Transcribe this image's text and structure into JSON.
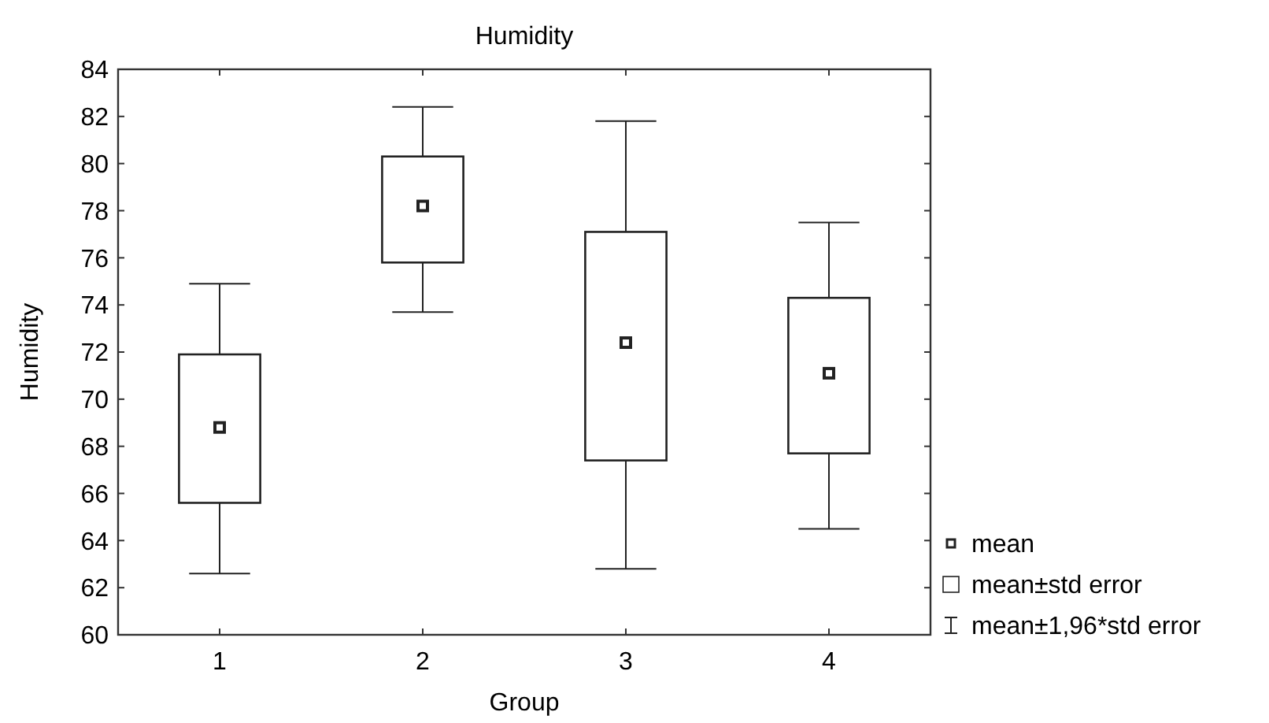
{
  "chart_data": {
    "type": "box",
    "title": "Humidity",
    "xlabel": "Group",
    "ylabel": "Humidity",
    "categories": [
      "1",
      "2",
      "3",
      "4"
    ],
    "boxes": [
      {
        "low": 62.6,
        "q1": 65.6,
        "median": 68.8,
        "q3": 71.9,
        "high": 74.9
      },
      {
        "low": 73.7,
        "q1": 75.8,
        "median": 78.2,
        "q3": 80.3,
        "high": 82.4
      },
      {
        "low": 62.8,
        "q1": 67.4,
        "median": 72.4,
        "q3": 77.1,
        "high": 81.8
      },
      {
        "low": 64.5,
        "q1": 67.7,
        "median": 71.1,
        "q3": 74.3,
        "high": 77.5
      }
    ],
    "color": "#222222",
    "ylim": [
      60,
      84
    ],
    "yticks": [
      60,
      62,
      64,
      66,
      68,
      70,
      72,
      74,
      76,
      78,
      80,
      82,
      84
    ],
    "grid": false,
    "annotations": [
      "mean",
      "mean±std error",
      "mean±1,96*std error"
    ]
  }
}
